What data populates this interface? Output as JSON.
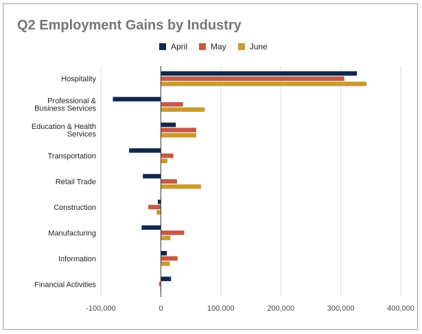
{
  "chart_data": {
    "type": "bar",
    "orientation": "horizontal",
    "title": "Q2 Employment Gains by Industry",
    "xlabel": "",
    "ylabel": "",
    "categories": [
      [
        "Hospitality"
      ],
      [
        "Professional &",
        "Business Services"
      ],
      [
        "Education & Health",
        "Services"
      ],
      [
        "Transportation"
      ],
      [
        "Retail Trade"
      ],
      [
        "Construction"
      ],
      [
        "Manufacturing"
      ],
      [
        "Information"
      ],
      [
        "Financial Activities"
      ]
    ],
    "series": [
      {
        "name": "April",
        "color": "#14284b",
        "values": [
          327000,
          -80000,
          25000,
          -53000,
          -30000,
          -5000,
          -32000,
          10000,
          17000
        ]
      },
      {
        "name": "May",
        "color": "#c55a47",
        "values": [
          306000,
          37000,
          59000,
          21000,
          27000,
          -21000,
          39000,
          28000,
          -3000
        ]
      },
      {
        "name": "June",
        "color": "#c99a2e",
        "values": [
          343000,
          73000,
          59000,
          11000,
          67000,
          -7000,
          16000,
          15000,
          -1000
        ]
      }
    ],
    "xlim": [
      -100000,
      400000
    ],
    "x_ticks": [
      -100000,
      0,
      100000,
      200000,
      300000,
      400000
    ],
    "x_tick_labels": [
      "-100,000",
      "0",
      "100,000",
      "200,000",
      "300,000",
      "400,000"
    ],
    "legend_position": "top",
    "grid": "vertical",
    "colors": {
      "grid": "#dddddd",
      "zero_line": "#333333",
      "title": "#757575",
      "border": "#9e9e9e"
    }
  }
}
